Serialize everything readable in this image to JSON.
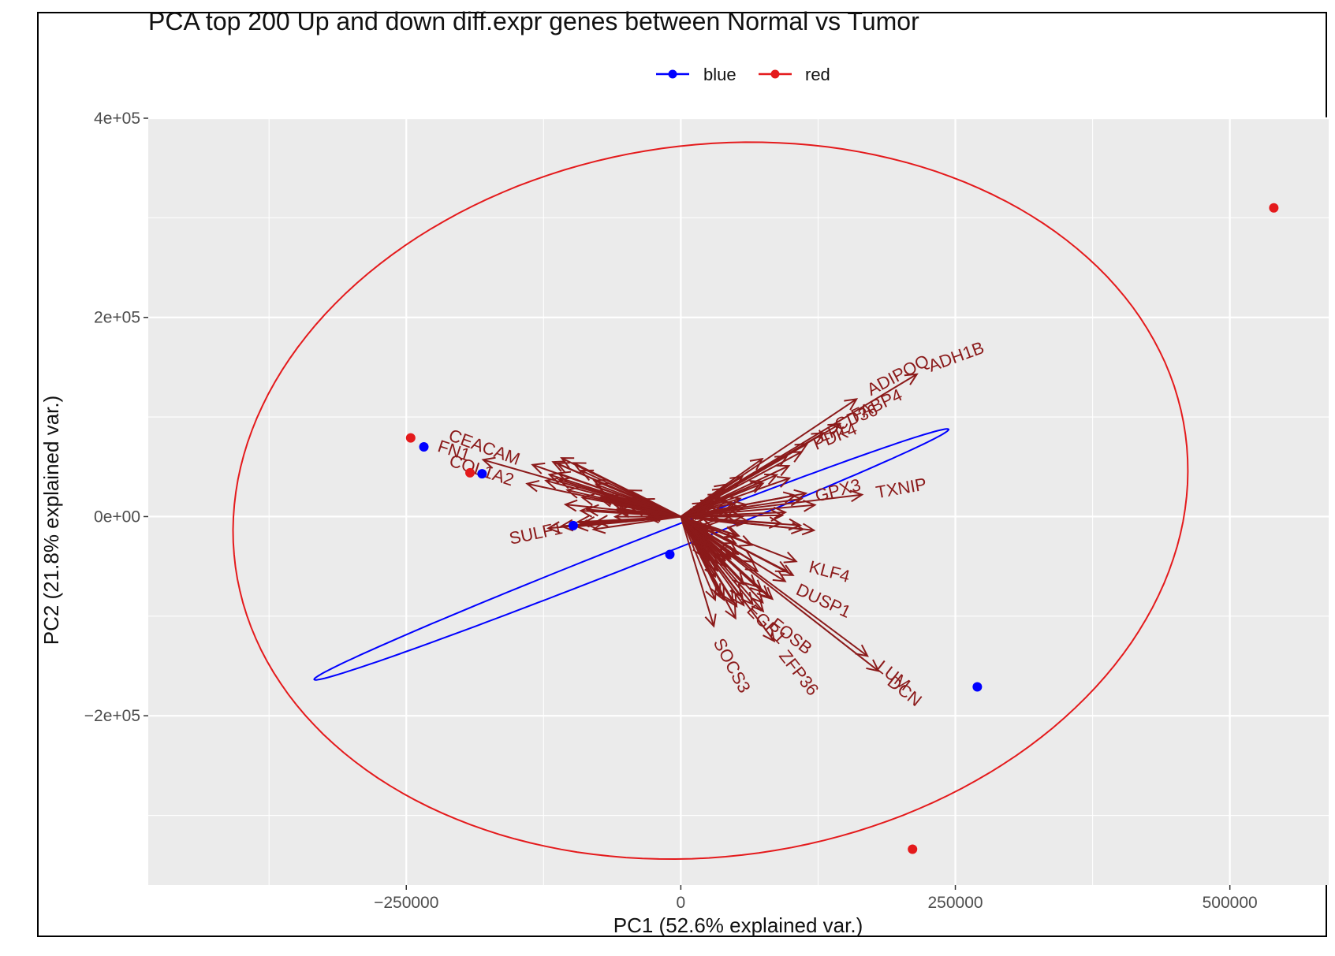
{
  "chart_data": {
    "type": "scatter",
    "title": "PCA top 200 Up and down diff.expr genes between Normal vs Tumor",
    "xlabel": "PC1 (52.6% explained var.)",
    "ylabel": "PC2 (21.8% explained var.)",
    "xlim": [
      -485000,
      590000
    ],
    "ylim": [
      -370000,
      400000
    ],
    "x_ticks": [
      {
        "value": -250000,
        "label": "−250000"
      },
      {
        "value": 0,
        "label": "0"
      },
      {
        "value": 250000,
        "label": "250000"
      },
      {
        "value": 500000,
        "label": "500000"
      }
    ],
    "y_ticks": [
      {
        "value": 400000,
        "label": "4e+05"
      },
      {
        "value": 200000,
        "label": "2e+05"
      },
      {
        "value": 0,
        "label": "0e+00"
      },
      {
        "value": -200000,
        "label": "−2e+05"
      }
    ],
    "grid": true,
    "legend_position": "top",
    "series": [
      {
        "name": "blue",
        "color": "#0000ff",
        "points": [
          [
            -234000,
            70000
          ],
          [
            -181000,
            43000
          ],
          [
            -98000,
            -9000
          ],
          [
            -10000,
            -38000
          ],
          [
            270000,
            -171000
          ]
        ],
        "ellipse": {
          "cx": -45000,
          "cy": -38000,
          "rx": 315000,
          "ry": 11000,
          "angle_deg": 23.5
        }
      },
      {
        "name": "red",
        "color": "#e41a1c",
        "points": [
          [
            -246000,
            79000
          ],
          [
            -192000,
            44000
          ],
          [
            540000,
            310000
          ],
          [
            211000,
            -334000
          ]
        ],
        "ellipse": {
          "cx": 27000,
          "cy": 16000,
          "rx": 438000,
          "ry": 356000,
          "angle_deg": 12
        }
      }
    ],
    "arrow_color": "#8b1a1a",
    "loadings": [
      {
        "label": "ADH1B",
        "x": 215000,
        "y": 143000,
        "rotate": -20
      },
      {
        "label": "ADIPOQ",
        "x": 160000,
        "y": 118000,
        "rotate": -28
      },
      {
        "label": "FABP4",
        "x": 145000,
        "y": 93000,
        "rotate": -25
      },
      {
        "label": "LPL",
        "x": 115000,
        "y": 73000,
        "rotate": -20
      },
      {
        "label": "CD36",
        "x": 130000,
        "y": 84000,
        "rotate": -22
      },
      {
        "label": "PDK4",
        "x": 110000,
        "y": 65000,
        "rotate": -22
      },
      {
        "label": "TXNIP",
        "x": 165000,
        "y": 22000,
        "rotate": -10
      },
      {
        "label": "GPX3",
        "x": 110000,
        "y": 18000,
        "rotate": -15
      },
      {
        "label": "FN1",
        "x": -180000,
        "y": 57000,
        "rotate": 18
      },
      {
        "label": "CEACAM",
        "x": -135000,
        "y": 52000,
        "rotate": 20
      },
      {
        "label": "SULF1",
        "x": -95000,
        "y": -10000,
        "rotate": -12
      },
      {
        "label": "COL1A2",
        "x": -140000,
        "y": 33000,
        "rotate": 18
      },
      {
        "label": "DCN",
        "x": 180000,
        "y": -155000,
        "rotate": 38
      },
      {
        "label": "LUM",
        "x": 170000,
        "y": -140000,
        "rotate": 38
      },
      {
        "label": "FOSB",
        "x": 75000,
        "y": -95000,
        "rotate": 38
      },
      {
        "label": "ZFP36",
        "x": 85000,
        "y": -125000,
        "rotate": 52
      },
      {
        "label": "SOCS3",
        "x": 30000,
        "y": -110000,
        "rotate": 62
      },
      {
        "label": "DUSP1",
        "x": 95000,
        "y": -65000,
        "rotate": 25
      },
      {
        "label": "KLF4",
        "x": 105000,
        "y": -45000,
        "rotate": 15
      },
      {
        "label": "EGR1",
        "x": 55000,
        "y": -80000,
        "rotate": 45
      }
    ],
    "arrow_only_count": 120
  }
}
